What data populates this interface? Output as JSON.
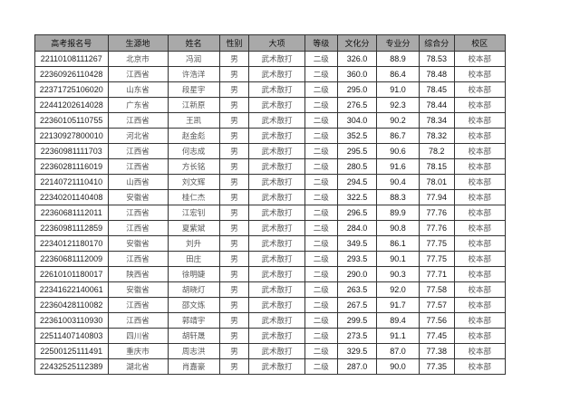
{
  "headers": [
    "高考报名号",
    "生源地",
    "姓名",
    "性别",
    "大项",
    "等级",
    "文化分",
    "专业分",
    "综合分",
    "校区"
  ],
  "rows": [
    [
      "22110108111267",
      "北京市",
      "冯润",
      "男",
      "武术散打",
      "二级",
      "326.0",
      "88.9",
      "78.53",
      "校本部"
    ],
    [
      "22360926110428",
      "江西省",
      "许浩洋",
      "男",
      "武术散打",
      "二级",
      "360.0",
      "86.4",
      "78.48",
      "校本部"
    ],
    [
      "22371725106020",
      "山东省",
      "段星宇",
      "男",
      "武术散打",
      "二级",
      "295.0",
      "91.0",
      "78.45",
      "校本部"
    ],
    [
      "22441202614028",
      "广东省",
      "江新原",
      "男",
      "武术散打",
      "二级",
      "276.5",
      "92.3",
      "78.44",
      "校本部"
    ],
    [
      "22360105110755",
      "江西省",
      "王凯",
      "男",
      "武术散打",
      "二级",
      "304.0",
      "90.2",
      "78.34",
      "校本部"
    ],
    [
      "22130927800010",
      "河北省",
      "赵金彪",
      "男",
      "武术散打",
      "二级",
      "352.5",
      "86.7",
      "78.32",
      "校本部"
    ],
    [
      "22360981111703",
      "江西省",
      "何志成",
      "男",
      "武术散打",
      "二级",
      "295.5",
      "90.6",
      "78.2",
      "校本部"
    ],
    [
      "22360281116019",
      "江西省",
      "方长铭",
      "男",
      "武术散打",
      "二级",
      "280.5",
      "91.6",
      "78.15",
      "校本部"
    ],
    [
      "22140721110410",
      "山西省",
      "刘文辉",
      "男",
      "武术散打",
      "二级",
      "294.5",
      "90.4",
      "78.01",
      "校本部"
    ],
    [
      "22340201140408",
      "安徽省",
      "桂仁杰",
      "男",
      "武术散打",
      "二级",
      "322.5",
      "88.3",
      "77.94",
      "校本部"
    ],
    [
      "22360681112011",
      "江西省",
      "江宏钊",
      "男",
      "武术散打",
      "二级",
      "296.5",
      "89.9",
      "77.76",
      "校本部"
    ],
    [
      "22360981112859",
      "江西省",
      "夏紫斌",
      "男",
      "武术散打",
      "二级",
      "284.0",
      "90.8",
      "77.76",
      "校本部"
    ],
    [
      "22340121180170",
      "安徽省",
      "刘升",
      "男",
      "武术散打",
      "二级",
      "349.5",
      "86.1",
      "77.75",
      "校本部"
    ],
    [
      "22360681112009",
      "江西省",
      "田庄",
      "男",
      "武术散打",
      "二级",
      "293.5",
      "90.1",
      "77.75",
      "校本部"
    ],
    [
      "22610101180017",
      "陕西省",
      "徐明婕",
      "男",
      "武术散打",
      "二级",
      "290.0",
      "90.3",
      "77.71",
      "校本部"
    ],
    [
      "22341622140061",
      "安徽省",
      "胡晓灯",
      "男",
      "武术散打",
      "二级",
      "263.5",
      "92.0",
      "77.58",
      "校本部"
    ],
    [
      "22360428110082",
      "江西省",
      "邵文炼",
      "男",
      "武术散打",
      "二级",
      "267.5",
      "91.7",
      "77.57",
      "校本部"
    ],
    [
      "22361003110930",
      "江西省",
      "郭靖宇",
      "男",
      "武术散打",
      "二级",
      "299.5",
      "89.4",
      "77.56",
      "校本部"
    ],
    [
      "22511407140803",
      "四川省",
      "胡轩晟",
      "男",
      "武术散打",
      "二级",
      "273.5",
      "91.1",
      "77.45",
      "校本部"
    ],
    [
      "22500125111491",
      "重庆市",
      "周志洪",
      "男",
      "武术散打",
      "二级",
      "329.5",
      "87.0",
      "77.38",
      "校本部"
    ],
    [
      "22432525112389",
      "湖北省",
      "肖嘉豪",
      "男",
      "武术散打",
      "二级",
      "287.0",
      "90.0",
      "77.35",
      "校本部"
    ]
  ]
}
